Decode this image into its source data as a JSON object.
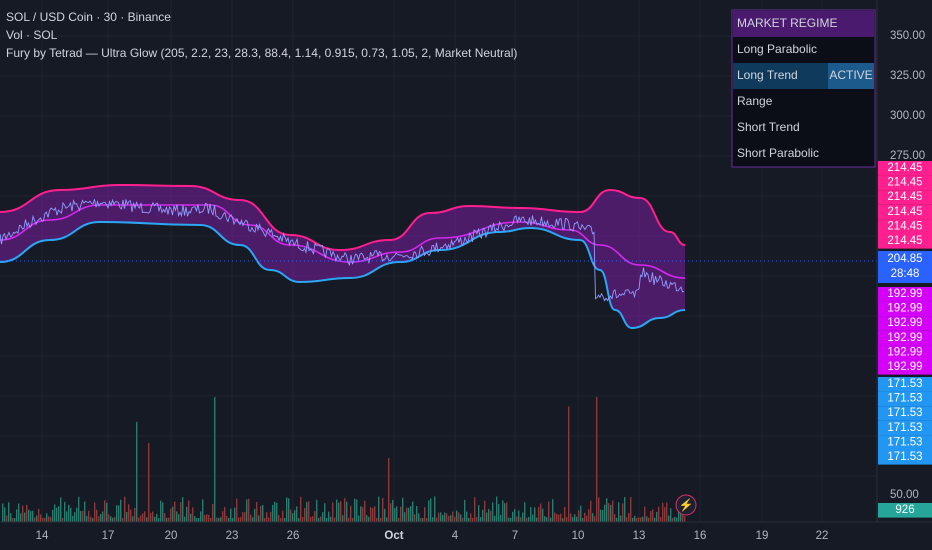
{
  "header": {
    "symbol": "SOL / USD Coin · 30 · Binance",
    "volume": "Vol · SOL",
    "indicator": "Fury by Tetrad — Ultra Glow (205, 2.2, 23, 28.3, 88.4, 1.14, 0.915, 0.73, 1.05, 2, Market Neutral)"
  },
  "regime": {
    "title": "MARKET REGIME",
    "rows": [
      {
        "label": "Long Parabolic"
      },
      {
        "label": "Long Trend",
        "status": "ACTIVE"
      },
      {
        "label": "Range"
      },
      {
        "label": "Short Trend"
      },
      {
        "label": "Short Parabolic"
      }
    ]
  },
  "price_axis": {
    "ticks": [
      {
        "value": 350,
        "label": "350.00"
      },
      {
        "value": 325,
        "label": "325.00"
      },
      {
        "value": 300,
        "label": "300.00"
      },
      {
        "value": 275,
        "label": "275.00"
      }
    ],
    "volume_tick": "50.00"
  },
  "badges": {
    "upper": [
      "214.45",
      "214.45",
      "214.45",
      "214.45",
      "214.45",
      "214.45"
    ],
    "last": {
      "price": "204.85",
      "countdown": "28:48"
    },
    "middle": [
      "192.99",
      "192.99",
      "192.99",
      "192.99",
      "192.99",
      "192.99"
    ],
    "lower": [
      "171.53",
      "171.53",
      "171.53",
      "171.53",
      "171.53",
      "171.53"
    ],
    "volume": "926"
  },
  "time_axis": [
    "14",
    "17",
    "20",
    "23",
    "26",
    "Oct",
    "4",
    "7",
    "10",
    "13",
    "16",
    "19",
    "22"
  ]
}
